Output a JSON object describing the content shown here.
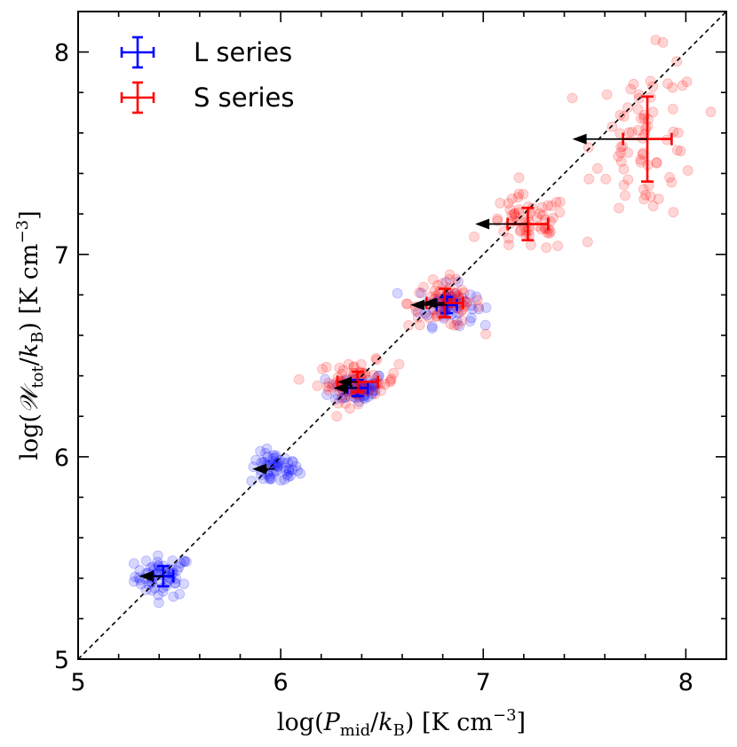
{
  "chart_data": {
    "type": "scatter",
    "xlabel": "log(P_mid/k_B) [K cm^-3]",
    "ylabel": "log(W_tot/k_B) [K cm^-3]",
    "xlim": [
      5,
      8.2
    ],
    "ylim": [
      5,
      8.2
    ],
    "x_ticks": [
      "5",
      "6",
      "7",
      "8"
    ],
    "y_ticks": [
      "5",
      "6",
      "7",
      "8"
    ],
    "grid": false,
    "legend_position": "top-left",
    "reference_line": {
      "style": "dashed",
      "color": "#000000",
      "from": [
        5,
        5
      ],
      "to": [
        8.2,
        8.2
      ]
    },
    "series": [
      {
        "name": "L series",
        "color": "#0000ff",
        "clusters": [
          {
            "x": 5.42,
            "y": 5.41,
            "xerr": 0.05,
            "yerr": 0.05,
            "spread_x": 0.07,
            "spread_y": 0.05,
            "n_points": 60,
            "arrow_to_x": 5.3
          },
          {
            "x": 5.97,
            "y": 5.94,
            "xerr": 0.0,
            "yerr": 0.0,
            "spread_x": 0.06,
            "spread_y": 0.04,
            "n_points": 55,
            "arrow_to_x": 5.86
          },
          {
            "x": 6.38,
            "y": 6.34,
            "xerr": 0.05,
            "yerr": 0.04,
            "spread_x": 0.07,
            "spread_y": 0.04,
            "n_points": 55,
            "arrow_to_x": 6.26
          },
          {
            "x": 6.82,
            "y": 6.75,
            "xerr": 0.05,
            "yerr": 0.04,
            "spread_x": 0.07,
            "spread_y": 0.05,
            "n_points": 55,
            "arrow_to_x": 6.64
          }
        ]
      },
      {
        "name": "S series",
        "color": "#ff0000",
        "clusters": [
          {
            "x": 6.38,
            "y": 6.37,
            "xerr": 0.1,
            "yerr": 0.05,
            "spread_x": 0.1,
            "spread_y": 0.05,
            "n_points": 70,
            "arrow_to_x": 6.28
          },
          {
            "x": 6.81,
            "y": 6.76,
            "xerr": 0.09,
            "yerr": 0.07,
            "spread_x": 0.09,
            "spread_y": 0.06,
            "n_points": 65,
            "arrow_to_x": 6.7
          },
          {
            "x": 7.22,
            "y": 7.15,
            "xerr": 0.1,
            "yerr": 0.08,
            "spread_x": 0.1,
            "spread_y": 0.07,
            "n_points": 60,
            "arrow_to_x": 6.96
          },
          {
            "x": 7.81,
            "y": 7.57,
            "xerr": 0.12,
            "yerr": 0.21,
            "spread_x": 0.13,
            "spread_y": 0.2,
            "n_points": 75,
            "arrow_to_x": 7.44
          }
        ]
      }
    ]
  }
}
